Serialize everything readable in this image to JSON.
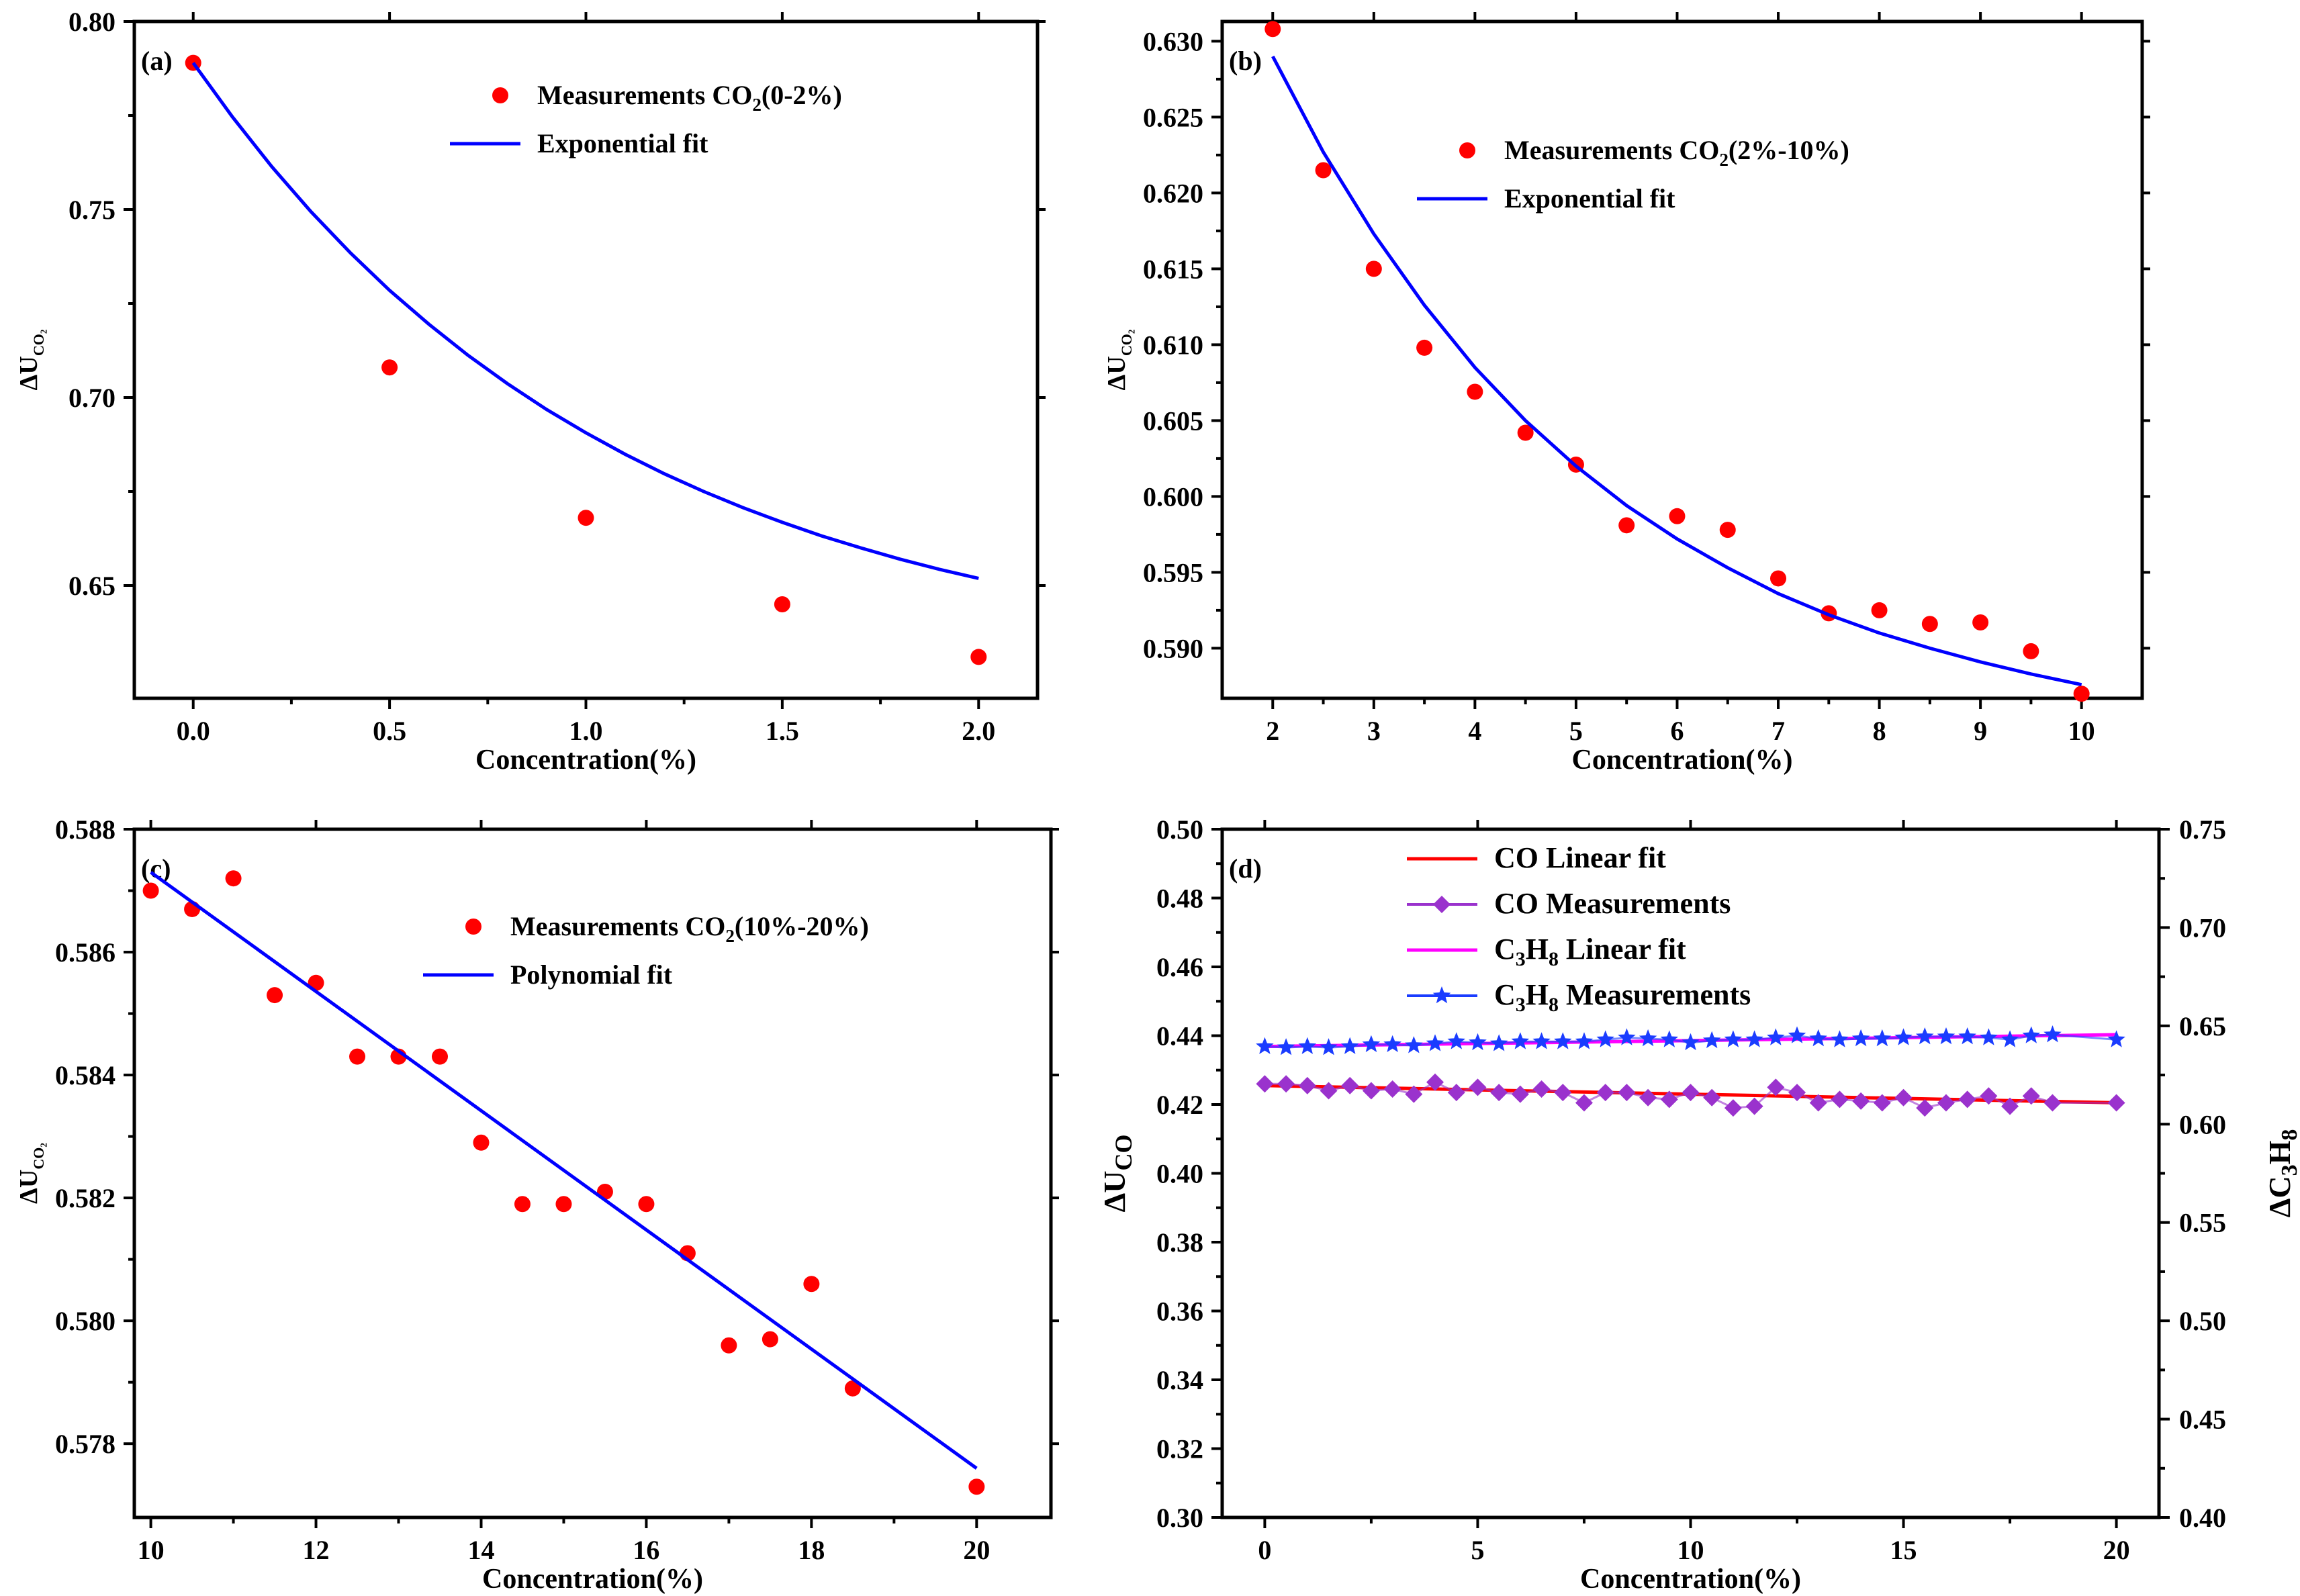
{
  "chart_data": [
    {
      "id": "a",
      "type": "scatter",
      "panel_label": "(a)",
      "xlabel": "Concentration(%)",
      "ylabel": "ΔU",
      "ylabel_sub": "CO₂",
      "xlim": [
        -0.15,
        2.15
      ],
      "ylim": [
        0.62,
        0.8
      ],
      "xticks": [
        0.0,
        0.5,
        1.0,
        1.5,
        2.0
      ],
      "xtick_labels": [
        "0.0",
        "0.5",
        "1.0",
        "1.5",
        "2.0"
      ],
      "yticks": [
        0.65,
        0.7,
        0.75,
        0.8
      ],
      "ytick_labels": [
        "0.65",
        "0.70",
        "0.75",
        "0.80"
      ],
      "series": [
        {
          "name": "Measurements CO2(0-2%)",
          "label_main": "Measurements CO",
          "label_sub": "2",
          "label_end": "(0-2%)",
          "kind": "scatter",
          "color": "#ff0000",
          "x": [
            0,
            0.5,
            1.0,
            1.5,
            2.0
          ],
          "y": [
            0.789,
            0.708,
            0.668,
            0.645,
            0.631
          ]
        },
        {
          "name": "Exponential fit",
          "label_main": "Exponential fit",
          "kind": "line",
          "color": "#0000ff",
          "x": [
            0,
            0.1,
            0.2,
            0.3,
            0.4,
            0.5,
            0.6,
            0.7,
            0.8,
            0.9,
            1.0,
            1.1,
            1.2,
            1.3,
            1.4,
            1.5,
            1.6,
            1.7,
            1.8,
            1.9,
            2.0
          ],
          "y": [
            0.789,
            0.7746,
            0.7614,
            0.7494,
            0.7385,
            0.7285,
            0.7195,
            0.7112,
            0.7037,
            0.6968,
            0.6906,
            0.6849,
            0.6797,
            0.675,
            0.6707,
            0.6668,
            0.6632,
            0.66,
            0.657,
            0.6543,
            0.6519
          ]
        }
      ]
    },
    {
      "id": "b",
      "type": "scatter",
      "panel_label": "(b)",
      "xlabel": "Concentration(%)",
      "ylabel": "ΔU",
      "ylabel_sub": "CO₂",
      "xlim": [
        1.5,
        10.6
      ],
      "ylim": [
        0.5867,
        0.6313
      ],
      "xticks": [
        2,
        3,
        4,
        5,
        6,
        7,
        8,
        9,
        10
      ],
      "xtick_labels": [
        "2",
        "3",
        "4",
        "5",
        "6",
        "7",
        "8",
        "9",
        "10"
      ],
      "yticks": [
        0.59,
        0.595,
        0.6,
        0.605,
        0.61,
        0.615,
        0.62,
        0.625,
        0.63
      ],
      "ytick_labels": [
        "0.590",
        "0.595",
        "0.600",
        "0.605",
        "0.610",
        "0.615",
        "0.620",
        "0.625",
        "0.630"
      ],
      "series": [
        {
          "name": "Measurements CO2(2%-10%)",
          "label_main": "Measurements CO",
          "label_sub": "2",
          "label_end": "(2%-10%)",
          "kind": "scatter",
          "color": "#ff0000",
          "x": [
            2,
            2.5,
            3,
            3.5,
            4,
            4.5,
            5,
            5.5,
            6,
            6.5,
            7,
            7.5,
            8,
            8.5,
            9,
            9.5,
            10
          ],
          "y": [
            0.6308,
            0.6215,
            0.615,
            0.6098,
            0.6069,
            0.6042,
            0.6021,
            0.5981,
            0.5987,
            0.5978,
            0.5946,
            0.5923,
            0.5925,
            0.5916,
            0.5917,
            0.5898,
            0.587
          ]
        },
        {
          "name": "Exponential fit",
          "label_main": "Exponential fit",
          "kind": "line",
          "color": "#0000ff",
          "x": [
            2,
            2.5,
            3,
            3.5,
            4,
            4.5,
            5,
            5.5,
            6,
            6.5,
            7,
            7.5,
            8,
            8.5,
            9,
            9.5,
            10
          ],
          "y": [
            0.629,
            0.6227,
            0.6173,
            0.6126,
            0.6085,
            0.605,
            0.602,
            0.5994,
            0.5972,
            0.5953,
            0.5936,
            0.5922,
            0.591,
            0.59,
            0.5891,
            0.5883,
            0.5876
          ]
        }
      ]
    },
    {
      "id": "c",
      "type": "scatter",
      "panel_label": "(c)",
      "xlabel": "Concentration(%)",
      "ylabel": "ΔU",
      "ylabel_sub": "CO₂",
      "xlim": [
        9.8,
        20.9
      ],
      "ylim": [
        0.5768,
        0.588
      ],
      "xticks": [
        10,
        12,
        14,
        16,
        18,
        20
      ],
      "xtick_labels": [
        "10",
        "12",
        "14",
        "16",
        "18",
        "20"
      ],
      "yticks": [
        0.578,
        0.58,
        0.582,
        0.584,
        0.586,
        0.588
      ],
      "ytick_labels": [
        "0.578",
        "0.580",
        "0.582",
        "0.584",
        "0.586",
        "0.588"
      ],
      "series": [
        {
          "name": "Measurements CO2(10%-20%)",
          "label_main": "Measurements CO",
          "label_sub": "2",
          "label_end": "(10%-20%)",
          "kind": "scatter",
          "color": "#ff0000",
          "x": [
            10,
            10.5,
            11,
            11.5,
            12,
            12.5,
            13,
            13.5,
            14,
            14.5,
            15,
            15.5,
            16,
            16.5,
            17,
            17.5,
            18,
            18.5,
            20
          ],
          "y": [
            0.587,
            0.5867,
            0.5872,
            0.5853,
            0.5855,
            0.5843,
            0.5843,
            0.5843,
            0.5829,
            0.5819,
            0.5819,
            0.5821,
            0.5819,
            0.5811,
            0.5796,
            0.5797,
            0.5806,
            0.5789,
            0.5773
          ]
        },
        {
          "name": "Polynomial fit",
          "label_main": "Polynomial fit",
          "kind": "line",
          "color": "#0000ff",
          "x": [
            10,
            20
          ],
          "y": [
            0.5873,
            0.5776
          ]
        }
      ]
    },
    {
      "id": "d",
      "type": "line",
      "panel_label": "(d)",
      "xlabel": "Concentration(%)",
      "ylabel": "ΔU",
      "ylabel_sub": "CO",
      "y2label": "ΔC",
      "y2label_sub1": "3",
      "y2label_mid": "H",
      "y2label_sub2": "8",
      "xlim": [
        -1,
        21
      ],
      "ylim": [
        0.3,
        0.5
      ],
      "y2lim": [
        0.4,
        0.75
      ],
      "xticks": [
        0,
        5,
        10,
        15,
        20
      ],
      "xtick_labels": [
        "0",
        "5",
        "10",
        "15",
        "20"
      ],
      "yticks": [
        0.3,
        0.32,
        0.34,
        0.36,
        0.38,
        0.4,
        0.42,
        0.44,
        0.46,
        0.48,
        0.5
      ],
      "ytick_labels": [
        "0.30",
        "0.32",
        "0.34",
        "0.36",
        "0.38",
        "0.40",
        "0.42",
        "0.44",
        "0.46",
        "0.48",
        "0.50"
      ],
      "y2ticks": [
        0.4,
        0.45,
        0.5,
        0.55,
        0.6,
        0.65,
        0.7,
        0.75
      ],
      "y2tick_labels": [
        "0.40",
        "0.45",
        "0.50",
        "0.55",
        "0.60",
        "0.65",
        "0.70",
        "0.75"
      ],
      "series": [
        {
          "name": "CO Linear fit",
          "label_main": "CO Linear fit",
          "kind": "line",
          "color": "#ff0000",
          "axis": "left",
          "x": [
            0,
            20
          ],
          "y": [
            0.4255,
            0.4205
          ]
        },
        {
          "name": "CO Measurements",
          "label_main": "CO Measurements",
          "kind": "diamond",
          "color": "#9a32cd",
          "axis": "left",
          "x": [
            0,
            0.5,
            1,
            1.5,
            2,
            2.5,
            3,
            3.5,
            4,
            4.5,
            5,
            5.5,
            6,
            6.5,
            7,
            7.5,
            8,
            8.5,
            9,
            9.5,
            10,
            10.5,
            11,
            11.5,
            12,
            12.5,
            13,
            13.5,
            14,
            14.5,
            15,
            15.5,
            16,
            16.5,
            17,
            17.5,
            18,
            18.5,
            20
          ],
          "y": [
            0.426,
            0.426,
            0.4255,
            0.424,
            0.4255,
            0.424,
            0.4245,
            0.423,
            0.4265,
            0.4235,
            0.425,
            0.4235,
            0.423,
            0.4245,
            0.4235,
            0.4205,
            0.4235,
            0.4235,
            0.422,
            0.4215,
            0.4235,
            0.422,
            0.419,
            0.4195,
            0.425,
            0.4235,
            0.4205,
            0.4215,
            0.421,
            0.4205,
            0.422,
            0.419,
            0.4205,
            0.4215,
            0.4225,
            0.4195,
            0.4225,
            0.4205,
            0.4205
          ]
        },
        {
          "name": "C3H8 Linear fit",
          "label_main": "C",
          "label_sub": "3",
          "label_mid": "H",
          "label_sub2": "8",
          "label_end": " Linear fit",
          "kind": "line",
          "color": "#ff00ff",
          "axis": "right",
          "x": [
            0,
            20
          ],
          "y": [
            0.6395,
            0.6455
          ]
        },
        {
          "name": "C3H8 Measurements",
          "label_main": "C",
          "label_sub": "3",
          "label_mid": "H",
          "label_sub2": "8",
          "label_end": " Measurements",
          "kind": "star",
          "color": "#1a3cff",
          "axis": "right",
          "x": [
            0,
            0.5,
            1,
            1.5,
            2,
            2.5,
            3,
            3.5,
            4,
            4.5,
            5,
            5.5,
            6,
            6.5,
            7,
            7.5,
            8,
            8.5,
            9,
            9.5,
            10,
            10.5,
            11,
            11.5,
            12,
            12.5,
            13,
            13.5,
            14,
            14.5,
            15,
            15.5,
            16,
            16.5,
            17,
            17.5,
            18,
            18.5,
            20
          ],
          "y": [
            0.6395,
            0.639,
            0.6395,
            0.639,
            0.6395,
            0.6405,
            0.6405,
            0.64,
            0.641,
            0.642,
            0.6415,
            0.641,
            0.642,
            0.642,
            0.642,
            0.642,
            0.643,
            0.644,
            0.6435,
            0.643,
            0.6415,
            0.6425,
            0.643,
            0.643,
            0.644,
            0.645,
            0.6435,
            0.643,
            0.6435,
            0.6435,
            0.644,
            0.6445,
            0.6445,
            0.6445,
            0.644,
            0.643,
            0.645,
            0.6455,
            0.643
          ]
        }
      ]
    }
  ]
}
